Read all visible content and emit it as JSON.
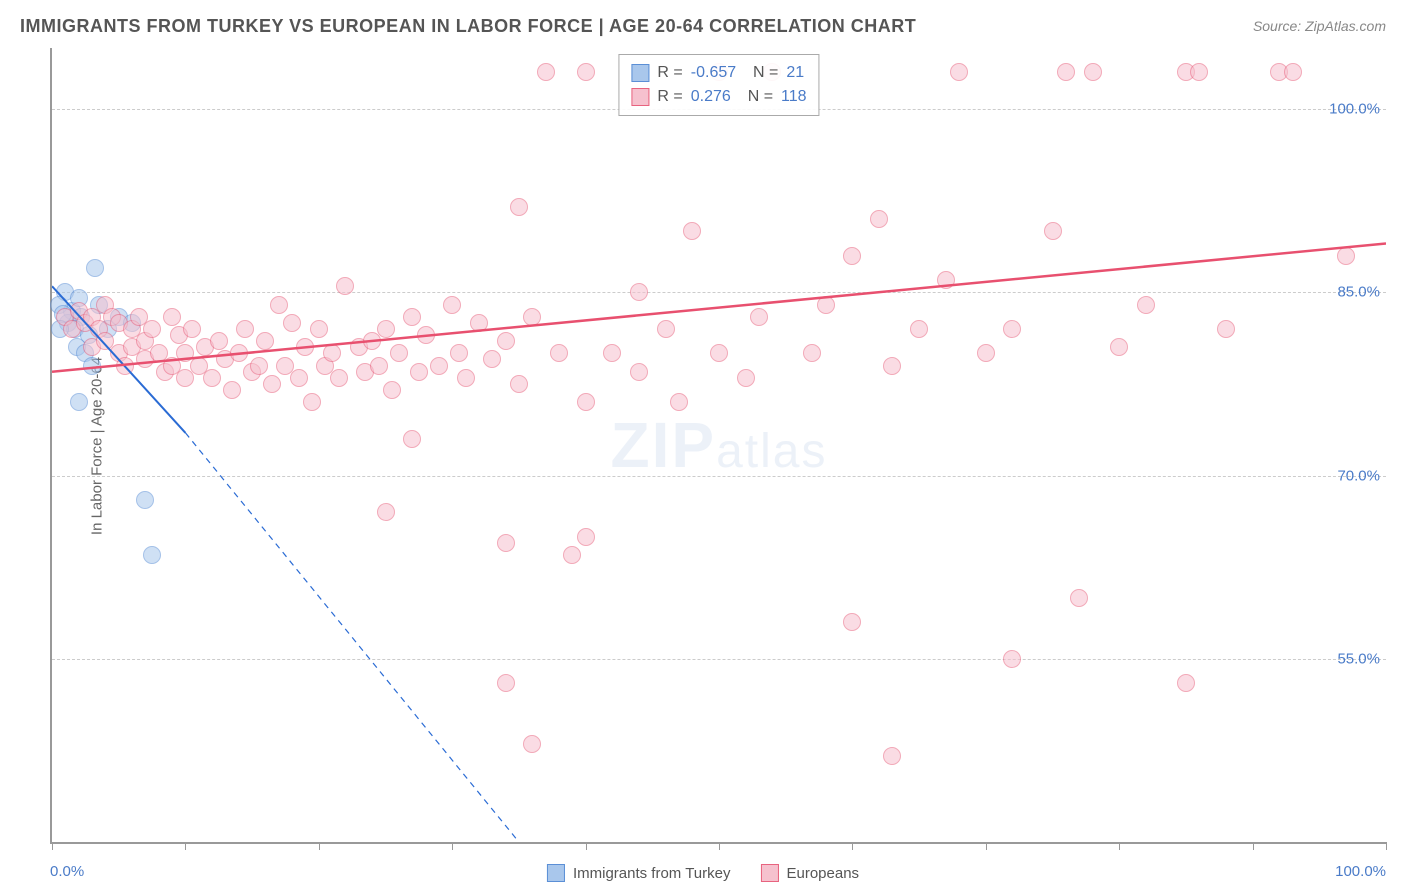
{
  "title": "IMMIGRANTS FROM TURKEY VS EUROPEAN IN LABOR FORCE | AGE 20-64 CORRELATION CHART",
  "source": "Source: ZipAtlas.com",
  "ylabel": "In Labor Force | Age 20-64",
  "watermark_big": "ZIP",
  "watermark_small": "atlas",
  "chart": {
    "type": "scatter",
    "xlim": [
      0,
      100
    ],
    "ylim": [
      40,
      105
    ],
    "x_tick_labels": [
      "0.0%",
      "100.0%"
    ],
    "x_tick_positions": [
      0,
      10,
      20,
      30,
      40,
      50,
      60,
      70,
      80,
      90,
      100
    ],
    "y_ticks": [
      {
        "value": 55.0,
        "label": "55.0%"
      },
      {
        "value": 70.0,
        "label": "70.0%"
      },
      {
        "value": 85.0,
        "label": "85.0%"
      },
      {
        "value": 100.0,
        "label": "100.0%"
      }
    ],
    "background_color": "#ffffff",
    "grid_color": "#cccccc",
    "marker_radius": 9,
    "marker_opacity": 0.55,
    "series": [
      {
        "name": "Immigrants from Turkey",
        "color_fill": "#a9c7ec",
        "color_stroke": "#5b8fd6",
        "R": "-0.657",
        "N": "21",
        "trend": {
          "x1": 0,
          "y1": 85.5,
          "x2": 10,
          "y2": 73.5,
          "solid_until_x": 10,
          "dashed_to_x": 35,
          "dashed_to_y": 40,
          "color": "#2a6bd4",
          "width": 2
        },
        "points": [
          [
            1.0,
            85.0
          ],
          [
            3.2,
            87.0
          ],
          [
            1.5,
            83.5
          ],
          [
            2.0,
            84.5
          ],
          [
            0.5,
            84.0
          ],
          [
            1.2,
            82.5
          ],
          [
            2.2,
            83.0
          ],
          [
            0.8,
            83.2
          ],
          [
            1.7,
            82.0
          ],
          [
            2.8,
            81.5
          ],
          [
            3.5,
            84.0
          ],
          [
            0.6,
            82.0
          ],
          [
            1.9,
            80.5
          ],
          [
            4.2,
            82.0
          ],
          [
            2.5,
            80.0
          ],
          [
            5.0,
            83.0
          ],
          [
            6.0,
            82.5
          ],
          [
            3.0,
            79.0
          ],
          [
            2.0,
            76.0
          ],
          [
            7.0,
            68.0
          ],
          [
            7.5,
            63.5
          ]
        ]
      },
      {
        "name": "Europeans",
        "color_fill": "#f6c1ce",
        "color_stroke": "#e8637f",
        "R": "0.276",
        "N": "118",
        "trend": {
          "x1": 0,
          "y1": 78.5,
          "x2": 100,
          "y2": 89.0,
          "color": "#e8506f",
          "width": 2.5
        },
        "points": [
          [
            1,
            83
          ],
          [
            1.5,
            82
          ],
          [
            2,
            83.5
          ],
          [
            2.5,
            82.5
          ],
          [
            3,
            80.5
          ],
          [
            3,
            83
          ],
          [
            3.5,
            82
          ],
          [
            4,
            84
          ],
          [
            4,
            81
          ],
          [
            4.5,
            83
          ],
          [
            5,
            82.5
          ],
          [
            5,
            80
          ],
          [
            5.5,
            79
          ],
          [
            6,
            82
          ],
          [
            6,
            80.5
          ],
          [
            6.5,
            83
          ],
          [
            7,
            81
          ],
          [
            7,
            79.5
          ],
          [
            7.5,
            82
          ],
          [
            8,
            80
          ],
          [
            8.5,
            78.5
          ],
          [
            9,
            83
          ],
          [
            9,
            79
          ],
          [
            9.5,
            81.5
          ],
          [
            10,
            80
          ],
          [
            10,
            78
          ],
          [
            10.5,
            82
          ],
          [
            11,
            79
          ],
          [
            11.5,
            80.5
          ],
          [
            12,
            78
          ],
          [
            12.5,
            81
          ],
          [
            13,
            79.5
          ],
          [
            13.5,
            77
          ],
          [
            14,
            80
          ],
          [
            14.5,
            82
          ],
          [
            15,
            78.5
          ],
          [
            15.5,
            79
          ],
          [
            16,
            81
          ],
          [
            16.5,
            77.5
          ],
          [
            17,
            84
          ],
          [
            17.5,
            79
          ],
          [
            18,
            82.5
          ],
          [
            18.5,
            78
          ],
          [
            19,
            80.5
          ],
          [
            19.5,
            76
          ],
          [
            20,
            82
          ],
          [
            20.5,
            79
          ],
          [
            21,
            80
          ],
          [
            21.5,
            78
          ],
          [
            22,
            85.5
          ],
          [
            23,
            80.5
          ],
          [
            23.5,
            78.5
          ],
          [
            24,
            81
          ],
          [
            24.5,
            79
          ],
          [
            25,
            82
          ],
          [
            25.5,
            77
          ],
          [
            26,
            80
          ],
          [
            27,
            83
          ],
          [
            27.5,
            78.5
          ],
          [
            28,
            81.5
          ],
          [
            29,
            79
          ],
          [
            30,
            84
          ],
          [
            30.5,
            80
          ],
          [
            31,
            78
          ],
          [
            32,
            82.5
          ],
          [
            33,
            79.5
          ],
          [
            34,
            81
          ],
          [
            35,
            77.5
          ],
          [
            36,
            83
          ],
          [
            38,
            80
          ],
          [
            25,
            67
          ],
          [
            27,
            73
          ],
          [
            34,
            53
          ],
          [
            34,
            64.5
          ],
          [
            35,
            92
          ],
          [
            36,
            48
          ],
          [
            37,
            103
          ],
          [
            39,
            63.5
          ],
          [
            40,
            65
          ],
          [
            40,
            76
          ],
          [
            40,
            103
          ],
          [
            42,
            80
          ],
          [
            44,
            85
          ],
          [
            44,
            78.5
          ],
          [
            46,
            82
          ],
          [
            47,
            76
          ],
          [
            48,
            90
          ],
          [
            50,
            80
          ],
          [
            50,
            103
          ],
          [
            52,
            78
          ],
          [
            53,
            83
          ],
          [
            54,
            103
          ],
          [
            57,
            80
          ],
          [
            58,
            84
          ],
          [
            60,
            88
          ],
          [
            60,
            58
          ],
          [
            62,
            91
          ],
          [
            63,
            79
          ],
          [
            63,
            47
          ],
          [
            65,
            82
          ],
          [
            67,
            86
          ],
          [
            68,
            103
          ],
          [
            70,
            80
          ],
          [
            72,
            55
          ],
          [
            72,
            82
          ],
          [
            75,
            90
          ],
          [
            76,
            103
          ],
          [
            77,
            60
          ],
          [
            78,
            103
          ],
          [
            80,
            80.5
          ],
          [
            82,
            84
          ],
          [
            85,
            103
          ],
          [
            85,
            53
          ],
          [
            86,
            103
          ],
          [
            88,
            82
          ],
          [
            92,
            103
          ],
          [
            93,
            103
          ],
          [
            97,
            88
          ]
        ]
      }
    ]
  },
  "legend_bottom": [
    {
      "swatch_fill": "#a9c7ec",
      "swatch_stroke": "#5b8fd6",
      "label": "Immigrants from Turkey"
    },
    {
      "swatch_fill": "#f6c1ce",
      "swatch_stroke": "#e8637f",
      "label": "Europeans"
    }
  ]
}
